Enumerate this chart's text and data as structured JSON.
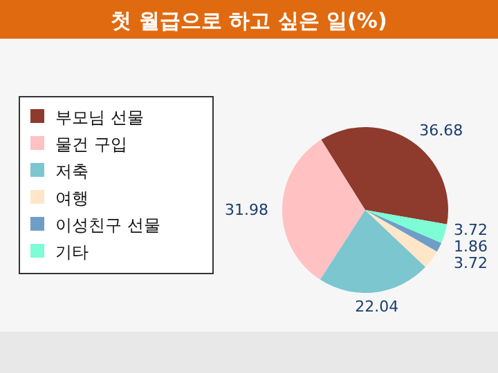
{
  "chart_data": {
    "type": "pie",
    "title": "첫 월급으로 하고 싶은 일(%)",
    "categories": [
      "부모님 선물",
      "물건 구입",
      "저축",
      "여행",
      "이성친구 선물",
      "기타"
    ],
    "values": [
      36.68,
      31.98,
      22.04,
      3.72,
      1.86,
      3.72
    ],
    "colors": [
      "#8e3a2c",
      "#ffc1c1",
      "#7bc6cf",
      "#ffe6c8",
      "#6e9ec8",
      "#7dfcd5"
    ],
    "data_labels": true,
    "legend": "left"
  }
}
